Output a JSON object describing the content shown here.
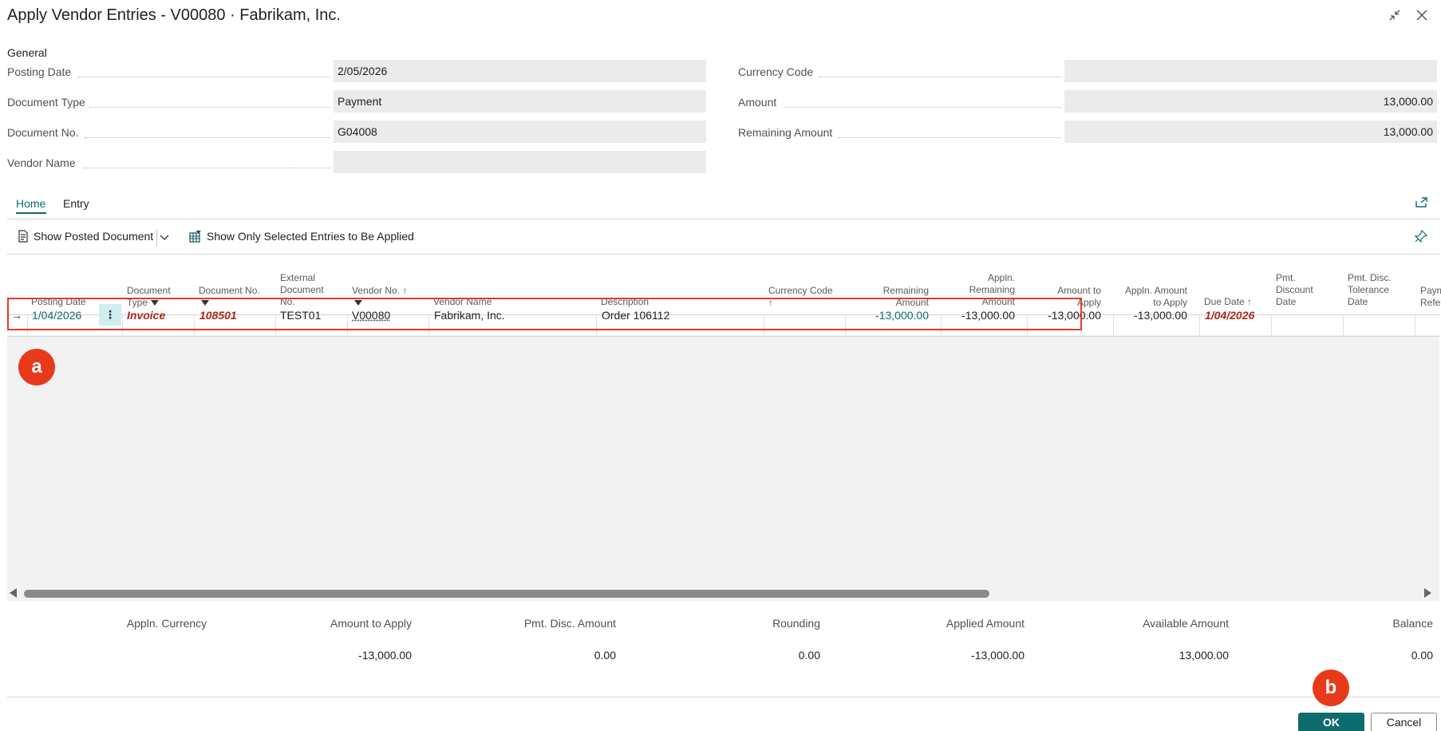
{
  "window": {
    "title": "Apply Vendor Entries - V00080 · Fabrikam, Inc.",
    "collapse_icon": "collapse-icon",
    "close_icon": "close-icon"
  },
  "general": {
    "section_label": "General",
    "left_fields": [
      {
        "label": "Posting Date",
        "value": "2/05/2026"
      },
      {
        "label": "Document Type",
        "value": "Payment"
      },
      {
        "label": "Document No.",
        "value": "G04008"
      },
      {
        "label": "Vendor Name",
        "value": ""
      }
    ],
    "right_fields": [
      {
        "label": "Currency Code",
        "value": ""
      },
      {
        "label": "Amount",
        "value": "13,000.00"
      },
      {
        "label": "Remaining Amount",
        "value": "13,000.00"
      }
    ]
  },
  "tabs": [
    {
      "label": "Home",
      "active": true
    },
    {
      "label": "Entry",
      "active": false
    }
  ],
  "actions": {
    "show_posted_document": "Show Posted Document",
    "show_only_selected": "Show Only Selected Entries to Be Applied"
  },
  "grid": {
    "columns": {
      "posting_date": "Posting Date",
      "document_type": [
        "Document",
        "Type"
      ],
      "document_no": "Document No.",
      "external_doc": [
        "External",
        "Document",
        "No."
      ],
      "vendor_no": "Vendor No.",
      "vendor_name": "Vendor Name",
      "description": "Description",
      "currency_code": "Currency Code",
      "remaining_amount": [
        "Remaining",
        "Amount"
      ],
      "appln_remaining": [
        "Appln.",
        "Remaining",
        "Amount"
      ],
      "amount_to_apply": [
        "Amount to",
        "Apply"
      ],
      "appln_amount_to_apply": [
        "Appln. Amount",
        "to Apply"
      ],
      "due_date": "Due Date",
      "pmt_discount_date": [
        "Pmt.",
        "Discount",
        "Date"
      ],
      "pmt_disc_tolerance": [
        "Pmt. Disc.",
        "Tolerance",
        "Date"
      ],
      "pay_ref": [
        "Paym",
        "Refe"
      ]
    },
    "row": {
      "posting_date": "1/04/2026",
      "document_type": "Invoice",
      "document_no": "108501",
      "external_doc": "TEST01",
      "vendor_no": "V00080",
      "vendor_name": "Fabrikam, Inc.",
      "description": "Order 106112",
      "currency_code": "",
      "remaining_amount": "-13,000.00",
      "appln_remaining": "-13,000.00",
      "amount_to_apply": "-13,000.00",
      "appln_amount_to_apply": "-13,000.00",
      "due_date": "1/04/2026"
    }
  },
  "totals": {
    "headers": [
      "Appln. Currency",
      "Amount to Apply",
      "Pmt. Disc. Amount",
      "Rounding",
      "Applied Amount",
      "Available Amount",
      "Balance"
    ],
    "values": [
      "",
      "-13,000.00",
      "0.00",
      "0.00",
      "-13,000.00",
      "13,000.00",
      "0.00"
    ]
  },
  "buttons": {
    "ok": "OK",
    "cancel": "Cancel"
  },
  "annotations": {
    "a": "a",
    "b": "b"
  },
  "colors": {
    "accent": "#0f6c6e",
    "overdue_red": "#b0281a",
    "highlight_red": "#e83a2a"
  }
}
